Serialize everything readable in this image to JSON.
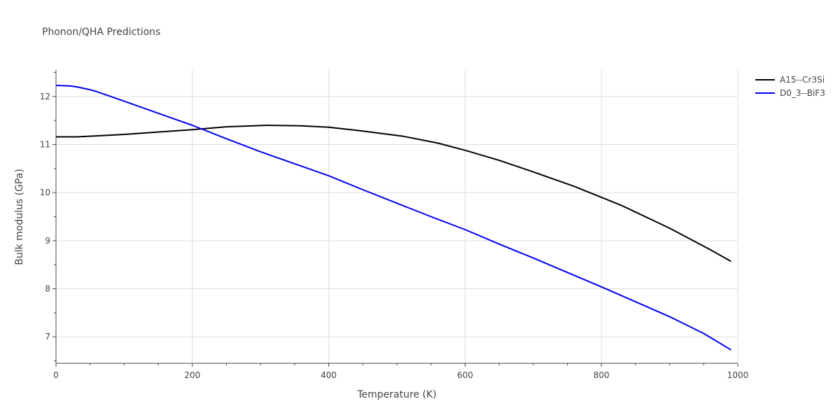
{
  "chart_data": {
    "type": "line",
    "title": "Phonon/QHA Predictions",
    "xlabel": "Temperature (K)",
    "ylabel": "Bulk modulus (GPa)",
    "xlim": [
      0,
      1000
    ],
    "ylim": [
      6.45,
      12.55
    ],
    "x_ticks": [
      0,
      200,
      400,
      600,
      800,
      1000
    ],
    "y_ticks": [
      7,
      8,
      9,
      10,
      11,
      12
    ],
    "grid": true,
    "legend_position": "top-right",
    "series": [
      {
        "name": "A15--Cr3Si",
        "color": "#000000",
        "x": [
          0,
          30,
          60,
          100,
          150,
          200,
          250,
          310,
          360,
          400,
          450,
          510,
          560,
          600,
          650,
          700,
          760,
          830,
          900,
          960,
          990
        ],
        "y": [
          11.16,
          11.16,
          11.18,
          11.21,
          11.26,
          11.31,
          11.37,
          11.4,
          11.39,
          11.36,
          11.28,
          11.17,
          11.03,
          10.88,
          10.67,
          10.43,
          10.13,
          9.73,
          9.26,
          8.81,
          8.57
        ]
      },
      {
        "name": "D0_3--BiF3",
        "color": "#0000ee",
        "x": [
          0,
          20,
          30,
          50,
          60,
          100,
          150,
          200,
          250,
          300,
          350,
          400,
          450,
          500,
          550,
          600,
          650,
          700,
          750,
          800,
          850,
          900,
          950,
          990
        ],
        "y": [
          12.23,
          12.22,
          12.2,
          12.14,
          12.1,
          11.9,
          11.65,
          11.4,
          11.12,
          10.85,
          10.6,
          10.35,
          10.06,
          9.78,
          9.5,
          9.23,
          8.93,
          8.64,
          8.34,
          8.04,
          7.73,
          7.42,
          7.07,
          6.73
        ]
      }
    ]
  }
}
